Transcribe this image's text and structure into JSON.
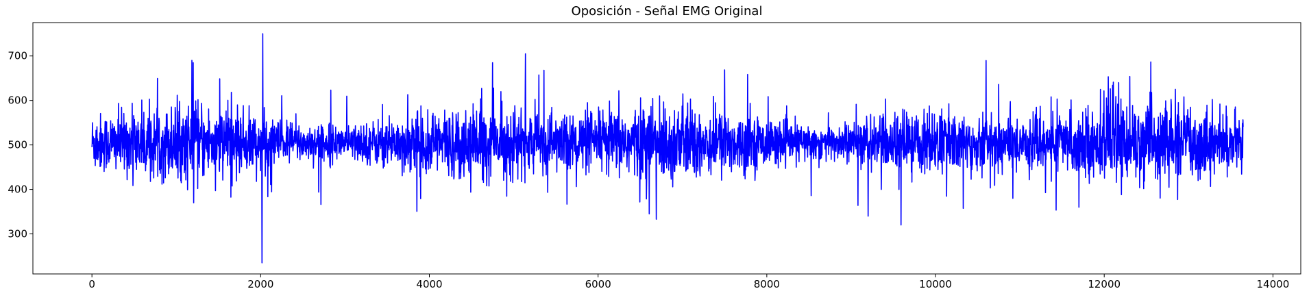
{
  "chart_data": {
    "type": "line",
    "title": "Oposición - Señal EMG Original",
    "xlabel": "",
    "ylabel": "",
    "xlim": [
      -700,
      14330
    ],
    "ylim": [
      210,
      775
    ],
    "xticks": [
      0,
      2000,
      4000,
      6000,
      8000,
      10000,
      12000,
      14000
    ],
    "yticks": [
      300,
      400,
      500,
      600,
      700
    ],
    "grid": false,
    "series": [
      {
        "color": "#0000ff",
        "n_samples": 13650,
        "baseline": 505,
        "noise_std": 38,
        "x_range": [
          0,
          13650
        ],
        "notable_points": [
          {
            "x": 1200,
            "y": 685
          },
          {
            "x": 1205,
            "y": 370
          },
          {
            "x": 2015,
            "y": 235
          },
          {
            "x": 2025,
            "y": 750
          },
          {
            "x": 2055,
            "y": 430
          },
          {
            "x": 4750,
            "y": 685
          },
          {
            "x": 5140,
            "y": 705
          },
          {
            "x": 6690,
            "y": 333
          },
          {
            "x": 9200,
            "y": 340
          },
          {
            "x": 9590,
            "y": 320
          },
          {
            "x": 11700,
            "y": 360
          },
          {
            "x": 12170,
            "y": 640
          }
        ]
      }
    ]
  }
}
